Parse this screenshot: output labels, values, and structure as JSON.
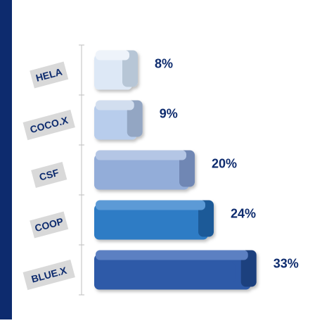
{
  "chart_data": {
    "type": "bar",
    "orientation": "horizontal",
    "categories": [
      "HELA",
      "COCO.X",
      "CSF",
      "COOP",
      "BLUE.X"
    ],
    "values": [
      8,
      9,
      20,
      24,
      33
    ],
    "data_labels": [
      "8%",
      "9%",
      "20%",
      "24%",
      "33%"
    ],
    "xlim": [
      0,
      40
    ],
    "grid": false,
    "legend": "none"
  },
  "colors": {
    "band": "#0d2b6e",
    "label_text": "#0d2b6e",
    "label_bg": "#d9d9d9",
    "bars": [
      "#dde8f6",
      "#b8cdec",
      "#93add9",
      "#2f7bc5",
      "#2e5aa8"
    ],
    "bar_tops": [
      "#eef3fa",
      "#d2deef",
      "#b4c6e5",
      "#5c9ad6",
      "#5b80c2"
    ],
    "bar_sides": [
      "#b7c6d6",
      "#93a6c3",
      "#6f87b4",
      "#1d5a98",
      "#1f3f7e"
    ]
  }
}
